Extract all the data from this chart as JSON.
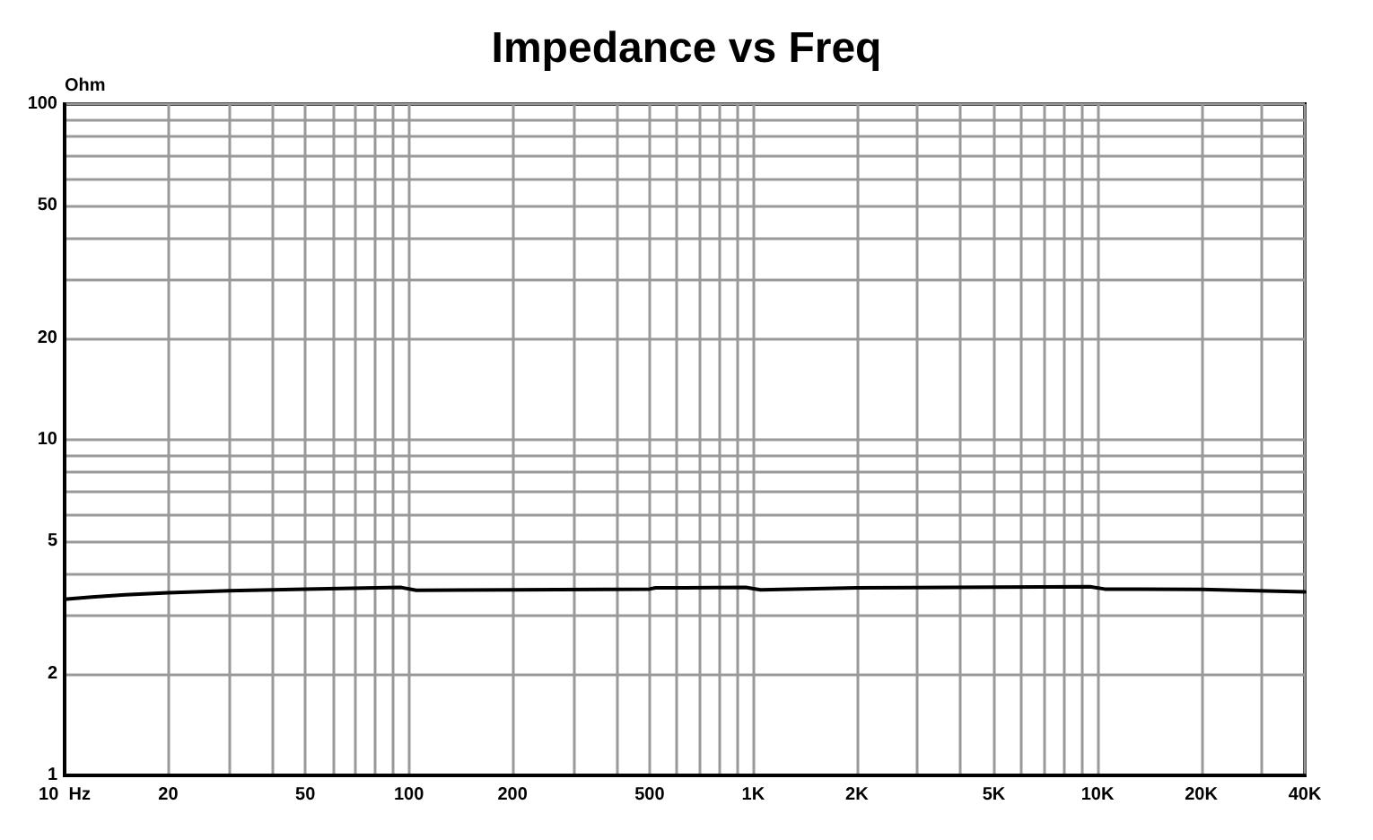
{
  "chart_data": {
    "type": "line",
    "title": "Impedance vs Freq",
    "ylabel": "Ohm",
    "log": "xy",
    "grid": true,
    "marker": "none",
    "line_style": "solid",
    "xlim": [
      10,
      40000
    ],
    "xticks": [
      {
        "value": 10,
        "label": "10  Hz"
      },
      20,
      {
        "value": 30,
        "label": null
      },
      {
        "value": 40,
        "label": null
      },
      50,
      {
        "value": 60,
        "label": null
      },
      {
        "value": 70,
        "label": null
      },
      {
        "value": 80,
        "label": null
      },
      {
        "value": 90,
        "label": null
      },
      100,
      200,
      {
        "value": 300,
        "label": null
      },
      {
        "value": 400,
        "label": null
      },
      500,
      {
        "value": 600,
        "label": null
      },
      {
        "value": 700,
        "label": null
      },
      {
        "value": 800,
        "label": null
      },
      {
        "value": 900,
        "label": null
      },
      {
        "value": 1000,
        "label": "1K"
      },
      {
        "value": 2000,
        "label": "2K"
      },
      {
        "value": 3000,
        "label": null
      },
      {
        "value": 4000,
        "label": null
      },
      {
        "value": 5000,
        "label": "5K"
      },
      {
        "value": 6000,
        "label": null
      },
      {
        "value": 7000,
        "label": null
      },
      {
        "value": 8000,
        "label": null
      },
      {
        "value": 9000,
        "label": null
      },
      {
        "value": 10000,
        "label": "10K"
      },
      {
        "value": 20000,
        "label": "20K"
      },
      {
        "value": 30000,
        "label": null
      },
      {
        "value": 40000,
        "label": "40K"
      }
    ],
    "ylim": [
      1,
      100
    ],
    "yticks": [
      1,
      2,
      {
        "value": 3,
        "label": null
      },
      {
        "value": 4,
        "label": null
      },
      5,
      {
        "value": 6,
        "label": null
      },
      {
        "value": 7,
        "label": null
      },
      {
        "value": 8,
        "label": null
      },
      {
        "value": 9,
        "label": null
      },
      10,
      20,
      {
        "value": 30,
        "label": null
      },
      {
        "value": 40,
        "label": null
      },
      50,
      {
        "value": 60,
        "label": null
      },
      {
        "value": 70,
        "label": null
      },
      {
        "value": 80,
        "label": null
      },
      {
        "value": 90,
        "label": null
      },
      100
    ],
    "series": [
      {
        "color": "#000000",
        "x": [
          10,
          12,
          15,
          20,
          30,
          50,
          80,
          95,
          105,
          200,
          500,
          520,
          950,
          1050,
          2000,
          5000,
          9500,
          10500,
          20000,
          40000
        ],
        "values": [
          3.35,
          3.4,
          3.45,
          3.5,
          3.55,
          3.59,
          3.62,
          3.63,
          3.56,
          3.57,
          3.59,
          3.62,
          3.63,
          3.57,
          3.62,
          3.64,
          3.65,
          3.59,
          3.58,
          3.52
        ]
      }
    ]
  }
}
